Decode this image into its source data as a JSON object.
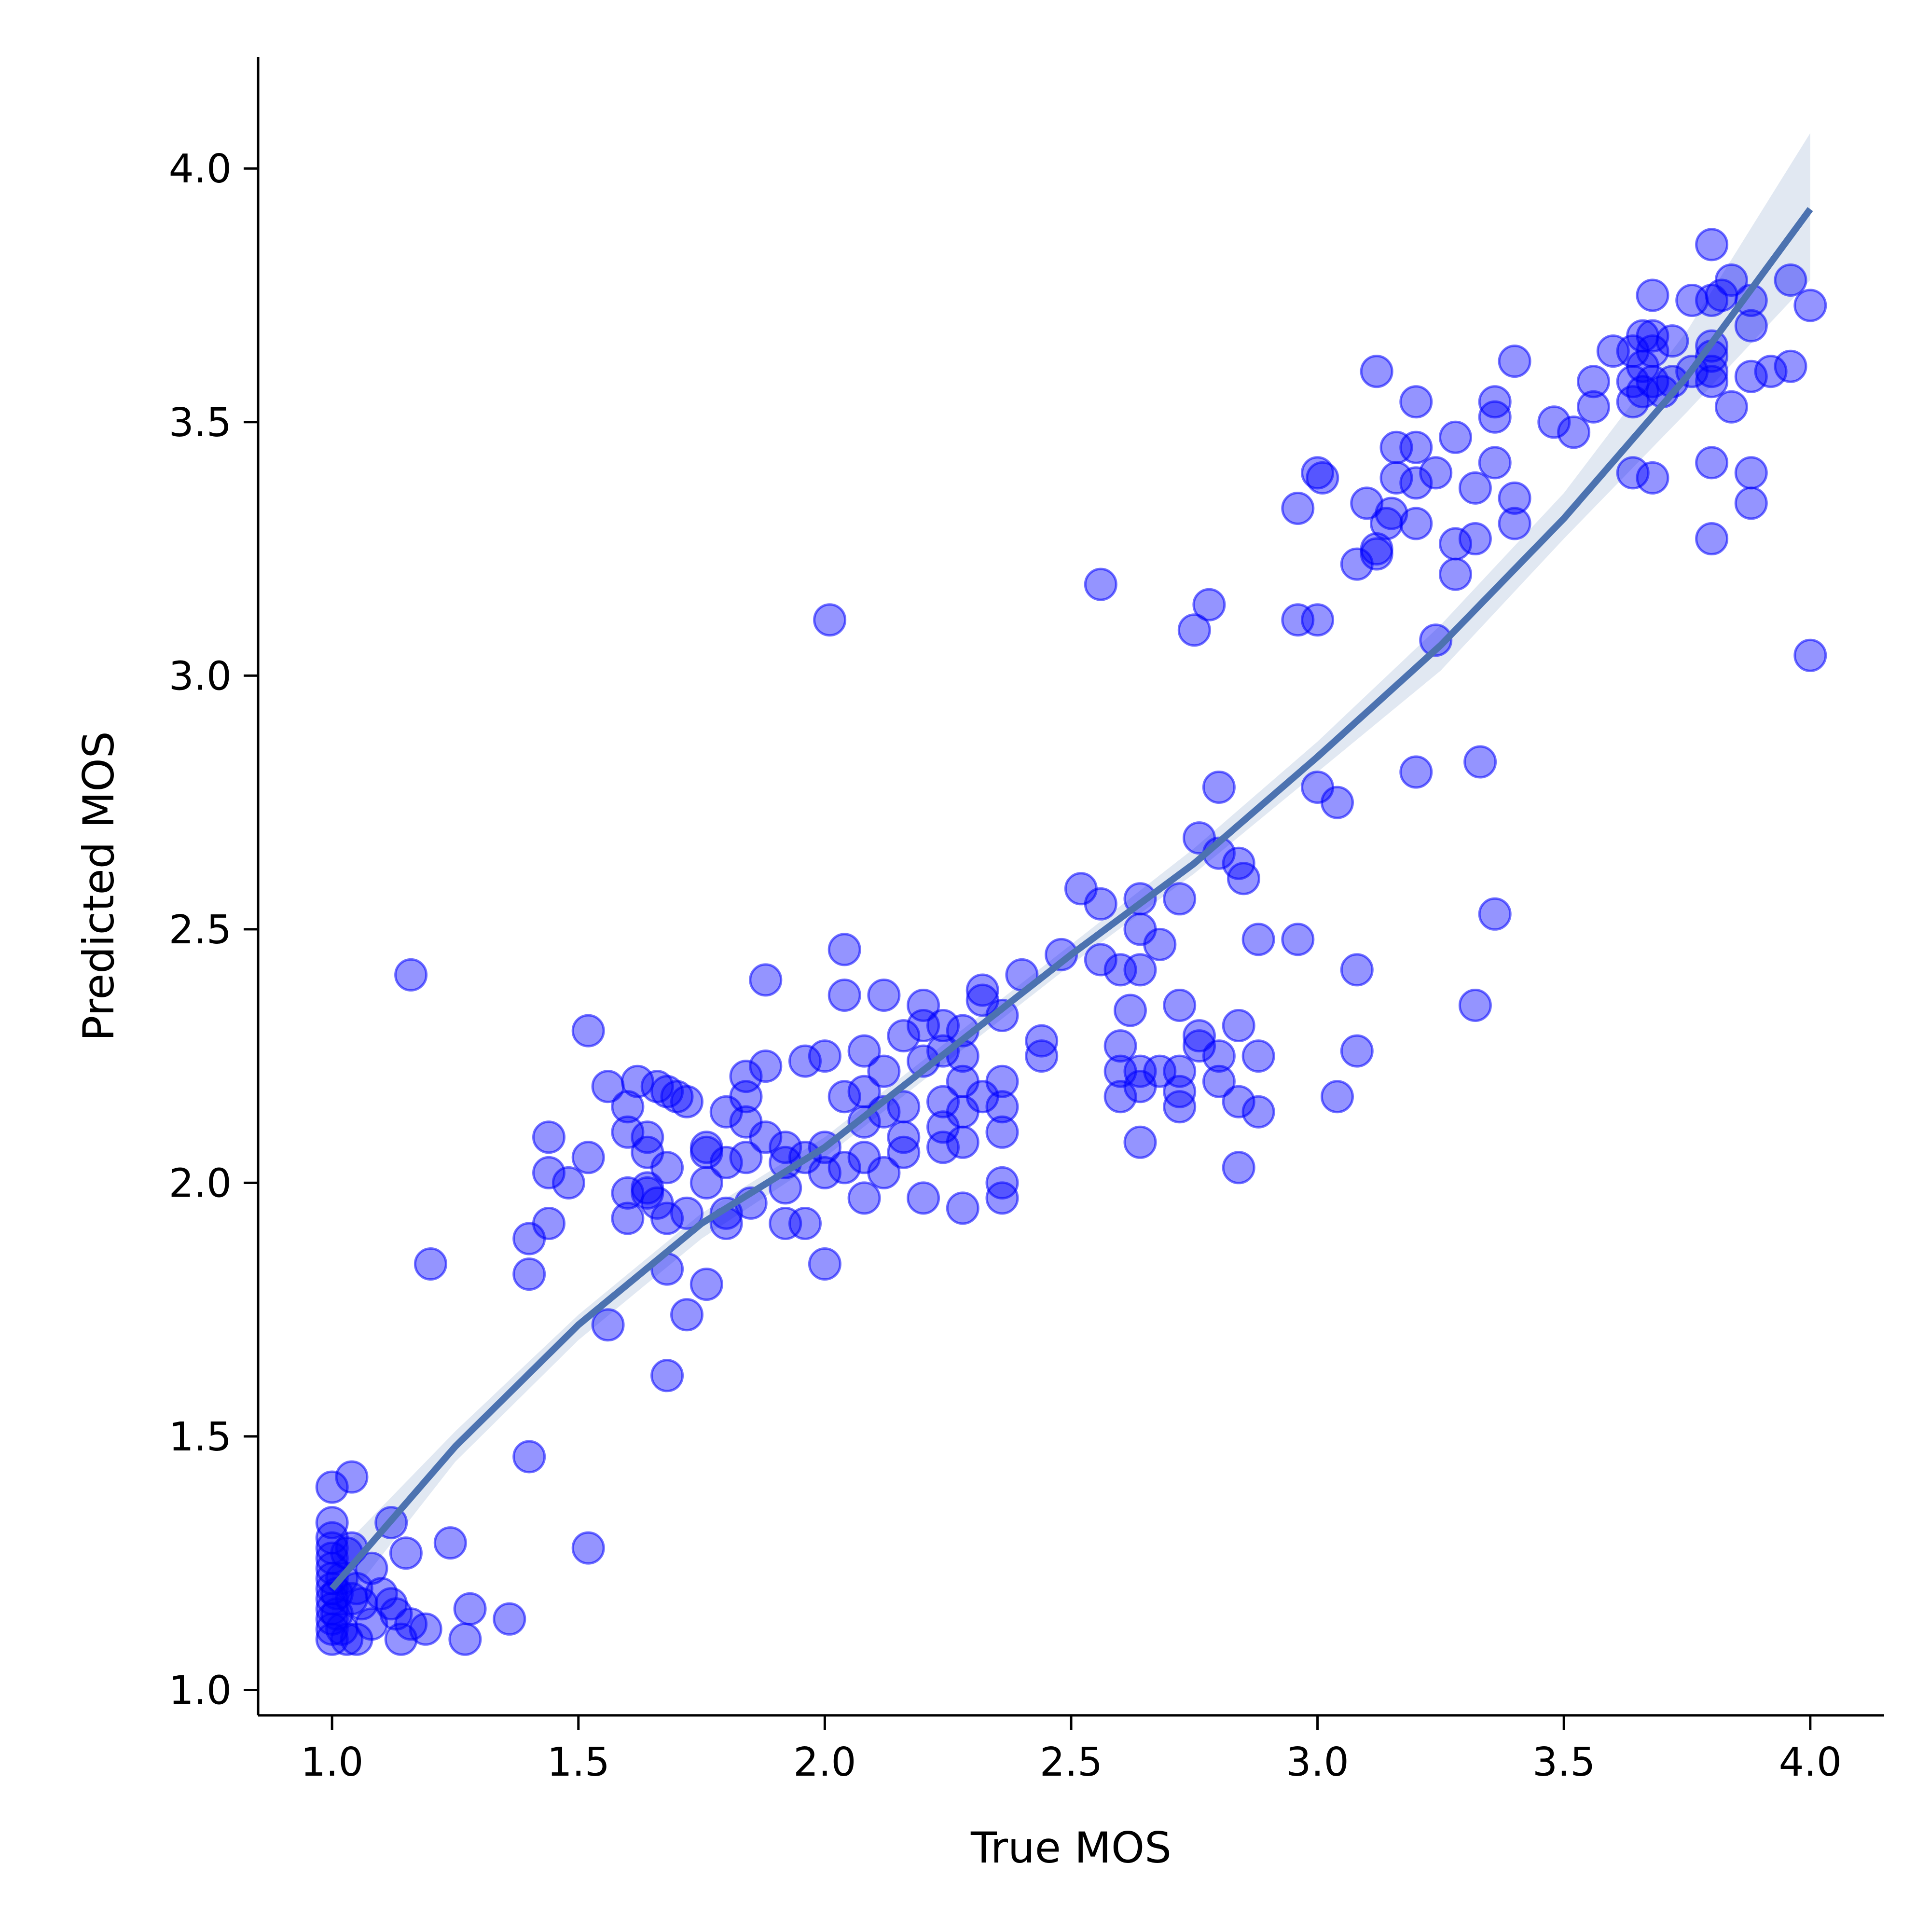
{
  "chart_data": {
    "type": "scatter",
    "title": "",
    "xlabel": "True MOS",
    "ylabel": "Predicted MOS",
    "xlim": [
      0.85,
      4.15
    ],
    "ylim": [
      0.95,
      4.22
    ],
    "x_ticks": [
      1.0,
      1.5,
      2.0,
      2.5,
      3.0,
      3.5,
      4.0
    ],
    "x_tick_labels": [
      "1.0",
      "1.5",
      "2.0",
      "2.5",
      "3.0",
      "3.5",
      "4.0"
    ],
    "y_ticks": [
      1.0,
      1.5,
      2.0,
      2.5,
      3.0,
      3.5,
      4.0
    ],
    "y_tick_labels": [
      "1.0",
      "1.5",
      "2.0",
      "2.5",
      "3.0",
      "3.5",
      "4.0"
    ],
    "grid": false,
    "legend": "none",
    "colors": {
      "points": "#0000ff",
      "fit_line": "#4c72b0",
      "confidence_band": "#c8d5e8",
      "axis": "#000000"
    },
    "series": [
      {
        "kind": "scatter",
        "points": [
          [
            1.0,
            1.4
          ],
          [
            1.0,
            1.33
          ],
          [
            1.0,
            1.3
          ],
          [
            1.0,
            1.28
          ],
          [
            1.0,
            1.26
          ],
          [
            1.0,
            1.24
          ],
          [
            1.0,
            1.22
          ],
          [
            1.0,
            1.2
          ],
          [
            1.0,
            1.18
          ],
          [
            1.0,
            1.16
          ],
          [
            1.0,
            1.14
          ],
          [
            1.0,
            1.12
          ],
          [
            1.0,
            1.1
          ],
          [
            1.01,
            1.19
          ],
          [
            1.01,
            1.15
          ],
          [
            1.02,
            1.22
          ],
          [
            1.02,
            1.12
          ],
          [
            1.03,
            1.27
          ],
          [
            1.03,
            1.1
          ],
          [
            1.04,
            1.42
          ],
          [
            1.04,
            1.28
          ],
          [
            1.04,
            1.18
          ],
          [
            1.05,
            1.2
          ],
          [
            1.05,
            1.1
          ],
          [
            1.06,
            1.17
          ],
          [
            1.08,
            1.24
          ],
          [
            1.08,
            1.13
          ],
          [
            1.1,
            1.19
          ],
          [
            1.12,
            1.33
          ],
          [
            1.12,
            1.17
          ],
          [
            1.13,
            1.15
          ],
          [
            1.14,
            1.1
          ],
          [
            1.15,
            1.27
          ],
          [
            1.16,
            1.13
          ],
          [
            1.16,
            2.41
          ],
          [
            1.19,
            1.12
          ],
          [
            1.2,
            1.84
          ],
          [
            1.24,
            1.29
          ],
          [
            1.27,
            1.1
          ],
          [
            1.28,
            1.16
          ],
          [
            1.36,
            1.14
          ],
          [
            1.4,
            1.46
          ],
          [
            1.4,
            1.82
          ],
          [
            1.4,
            1.89
          ],
          [
            1.44,
            1.92
          ],
          [
            1.44,
            2.02
          ],
          [
            1.44,
            2.09
          ],
          [
            1.48,
            2.0
          ],
          [
            1.52,
            2.05
          ],
          [
            1.52,
            2.3
          ],
          [
            1.52,
            1.28
          ],
          [
            1.56,
            1.72
          ],
          [
            1.56,
            2.19
          ],
          [
            1.6,
            1.93
          ],
          [
            1.6,
            1.98
          ],
          [
            1.6,
            2.1
          ],
          [
            1.6,
            2.15
          ],
          [
            1.62,
            2.2
          ],
          [
            1.64,
            2.06
          ],
          [
            1.64,
            2.09
          ],
          [
            1.64,
            1.98
          ],
          [
            1.64,
            1.99
          ],
          [
            1.66,
            2.19
          ],
          [
            1.66,
            1.96
          ],
          [
            1.68,
            1.62
          ],
          [
            1.68,
            1.83
          ],
          [
            1.68,
            2.03
          ],
          [
            1.68,
            1.93
          ],
          [
            1.68,
            2.18
          ],
          [
            1.7,
            2.17
          ],
          [
            1.72,
            1.74
          ],
          [
            1.72,
            1.94
          ],
          [
            1.72,
            2.16
          ],
          [
            1.76,
            1.8
          ],
          [
            1.76,
            2.0
          ],
          [
            1.76,
            2.06
          ],
          [
            1.76,
            2.07
          ],
          [
            1.8,
            1.92
          ],
          [
            1.8,
            1.94
          ],
          [
            1.8,
            2.04
          ],
          [
            1.8,
            2.14
          ],
          [
            1.84,
            2.05
          ],
          [
            1.84,
            2.12
          ],
          [
            1.84,
            2.17
          ],
          [
            1.84,
            2.21
          ],
          [
            1.85,
            1.96
          ],
          [
            1.88,
            2.4
          ],
          [
            1.88,
            2.09
          ],
          [
            1.88,
            2.23
          ],
          [
            1.92,
            1.92
          ],
          [
            1.92,
            1.99
          ],
          [
            1.92,
            2.04
          ],
          [
            1.92,
            2.07
          ],
          [
            1.96,
            1.92
          ],
          [
            1.96,
            2.05
          ],
          [
            1.96,
            2.24
          ],
          [
            2.0,
            1.84
          ],
          [
            2.0,
            2.02
          ],
          [
            2.0,
            2.07
          ],
          [
            2.0,
            2.25
          ],
          [
            2.01,
            3.11
          ],
          [
            2.04,
            2.03
          ],
          [
            2.04,
            2.17
          ],
          [
            2.04,
            2.37
          ],
          [
            2.04,
            2.46
          ],
          [
            2.08,
            1.97
          ],
          [
            2.08,
            2.05
          ],
          [
            2.08,
            2.12
          ],
          [
            2.08,
            2.18
          ],
          [
            2.08,
            2.26
          ],
          [
            2.12,
            2.02
          ],
          [
            2.12,
            2.14
          ],
          [
            2.12,
            2.22
          ],
          [
            2.12,
            2.37
          ],
          [
            2.16,
            2.06
          ],
          [
            2.16,
            2.09
          ],
          [
            2.16,
            2.15
          ],
          [
            2.16,
            2.29
          ],
          [
            2.2,
            1.97
          ],
          [
            2.2,
            2.24
          ],
          [
            2.2,
            2.31
          ],
          [
            2.2,
            2.35
          ],
          [
            2.24,
            2.07
          ],
          [
            2.24,
            2.11
          ],
          [
            2.24,
            2.16
          ],
          [
            2.24,
            2.26
          ],
          [
            2.24,
            2.31
          ],
          [
            2.28,
            1.95
          ],
          [
            2.28,
            2.08
          ],
          [
            2.28,
            2.14
          ],
          [
            2.28,
            2.2
          ],
          [
            2.28,
            2.25
          ],
          [
            2.28,
            2.3
          ],
          [
            2.32,
            2.17
          ],
          [
            2.32,
            2.36
          ],
          [
            2.32,
            2.38
          ],
          [
            2.36,
            1.97
          ],
          [
            2.36,
            2.0
          ],
          [
            2.36,
            2.1
          ],
          [
            2.36,
            2.15
          ],
          [
            2.36,
            2.2
          ],
          [
            2.36,
            2.33
          ],
          [
            2.4,
            2.41
          ],
          [
            2.44,
            2.25
          ],
          [
            2.44,
            2.28
          ],
          [
            2.48,
            2.45
          ],
          [
            2.52,
            2.58
          ],
          [
            2.56,
            2.44
          ],
          [
            2.56,
            2.55
          ],
          [
            2.56,
            3.18
          ],
          [
            2.6,
            2.17
          ],
          [
            2.6,
            2.22
          ],
          [
            2.6,
            2.27
          ],
          [
            2.6,
            2.42
          ],
          [
            2.62,
            2.34
          ],
          [
            2.64,
            2.08
          ],
          [
            2.64,
            2.19
          ],
          [
            2.64,
            2.22
          ],
          [
            2.64,
            2.42
          ],
          [
            2.64,
            2.5
          ],
          [
            2.64,
            2.56
          ],
          [
            2.68,
            2.22
          ],
          [
            2.68,
            2.47
          ],
          [
            2.72,
            2.15
          ],
          [
            2.72,
            2.18
          ],
          [
            2.72,
            2.22
          ],
          [
            2.72,
            2.35
          ],
          [
            2.72,
            2.56
          ],
          [
            2.75,
            3.09
          ],
          [
            2.76,
            2.27
          ],
          [
            2.76,
            2.29
          ],
          [
            2.76,
            2.68
          ],
          [
            2.78,
            3.14
          ],
          [
            2.8,
            2.2
          ],
          [
            2.8,
            2.25
          ],
          [
            2.8,
            2.65
          ],
          [
            2.8,
            2.78
          ],
          [
            2.84,
            2.03
          ],
          [
            2.84,
            2.16
          ],
          [
            2.84,
            2.31
          ],
          [
            2.84,
            2.63
          ],
          [
            2.85,
            2.6
          ],
          [
            2.88,
            2.14
          ],
          [
            2.88,
            2.25
          ],
          [
            2.88,
            2.48
          ],
          [
            2.96,
            2.48
          ],
          [
            2.96,
            3.11
          ],
          [
            2.96,
            3.33
          ],
          [
            3.0,
            2.78
          ],
          [
            3.0,
            3.11
          ],
          [
            3.0,
            3.4
          ],
          [
            3.01,
            3.39
          ],
          [
            3.04,
            2.17
          ],
          [
            3.04,
            2.75
          ],
          [
            3.08,
            2.26
          ],
          [
            3.08,
            2.42
          ],
          [
            3.08,
            3.22
          ],
          [
            3.1,
            3.34
          ],
          [
            3.12,
            3.24
          ],
          [
            3.12,
            3.25
          ],
          [
            3.12,
            3.6
          ],
          [
            3.14,
            3.3
          ],
          [
            3.15,
            3.32
          ],
          [
            3.16,
            3.39
          ],
          [
            3.16,
            3.45
          ],
          [
            3.2,
            2.81
          ],
          [
            3.2,
            3.3
          ],
          [
            3.2,
            3.38
          ],
          [
            3.2,
            3.45
          ],
          [
            3.2,
            3.54
          ],
          [
            3.24,
            3.07
          ],
          [
            3.24,
            3.4
          ],
          [
            3.28,
            3.2
          ],
          [
            3.28,
            3.26
          ],
          [
            3.28,
            3.47
          ],
          [
            3.32,
            2.35
          ],
          [
            3.32,
            3.27
          ],
          [
            3.32,
            3.37
          ],
          [
            3.33,
            2.83
          ],
          [
            3.36,
            2.53
          ],
          [
            3.36,
            3.51
          ],
          [
            3.36,
            3.54
          ],
          [
            3.36,
            3.42
          ],
          [
            3.4,
            3.3
          ],
          [
            3.4,
            3.35
          ],
          [
            3.4,
            3.62
          ],
          [
            3.48,
            3.5
          ],
          [
            3.52,
            3.48
          ],
          [
            3.56,
            3.53
          ],
          [
            3.56,
            3.58
          ],
          [
            3.6,
            3.64
          ],
          [
            3.64,
            3.4
          ],
          [
            3.64,
            3.54
          ],
          [
            3.64,
            3.58
          ],
          [
            3.64,
            3.64
          ],
          [
            3.66,
            3.56
          ],
          [
            3.66,
            3.61
          ],
          [
            3.66,
            3.67
          ],
          [
            3.68,
            3.39
          ],
          [
            3.68,
            3.58
          ],
          [
            3.68,
            3.64
          ],
          [
            3.68,
            3.67
          ],
          [
            3.68,
            3.75
          ],
          [
            3.7,
            3.56
          ],
          [
            3.72,
            3.66
          ],
          [
            3.72,
            3.58
          ],
          [
            3.76,
            3.6
          ],
          [
            3.76,
            3.74
          ],
          [
            3.8,
            3.27
          ],
          [
            3.8,
            3.42
          ],
          [
            3.8,
            3.58
          ],
          [
            3.8,
            3.6
          ],
          [
            3.8,
            3.63
          ],
          [
            3.8,
            3.65
          ],
          [
            3.8,
            3.74
          ],
          [
            3.8,
            3.85
          ],
          [
            3.82,
            3.75
          ],
          [
            3.84,
            3.53
          ],
          [
            3.84,
            3.78
          ],
          [
            3.88,
            3.34
          ],
          [
            3.88,
            3.4
          ],
          [
            3.88,
            3.59
          ],
          [
            3.88,
            3.69
          ],
          [
            3.88,
            3.74
          ],
          [
            3.92,
            3.6
          ],
          [
            3.96,
            3.61
          ],
          [
            3.96,
            3.78
          ],
          [
            4.0,
            3.04
          ],
          [
            4.0,
            3.73
          ]
        ]
      },
      {
        "kind": "fit_line",
        "x": [
          1.0,
          1.25,
          1.5,
          1.75,
          2.0,
          2.25,
          2.5,
          2.75,
          3.0,
          3.25,
          3.5,
          3.75,
          4.0
        ],
        "y": [
          1.2,
          1.48,
          1.72,
          1.92,
          2.07,
          2.26,
          2.45,
          2.63,
          2.84,
          3.06,
          3.31,
          3.59,
          3.92
        ],
        "band_lower": [
          1.14,
          1.45,
          1.69,
          1.89,
          2.05,
          2.24,
          2.43,
          2.61,
          2.81,
          3.01,
          3.27,
          3.52,
          3.78
        ],
        "band_upper": [
          1.26,
          1.51,
          1.74,
          1.94,
          2.09,
          2.28,
          2.47,
          2.66,
          2.87,
          3.1,
          3.36,
          3.68,
          4.07
        ]
      }
    ]
  }
}
